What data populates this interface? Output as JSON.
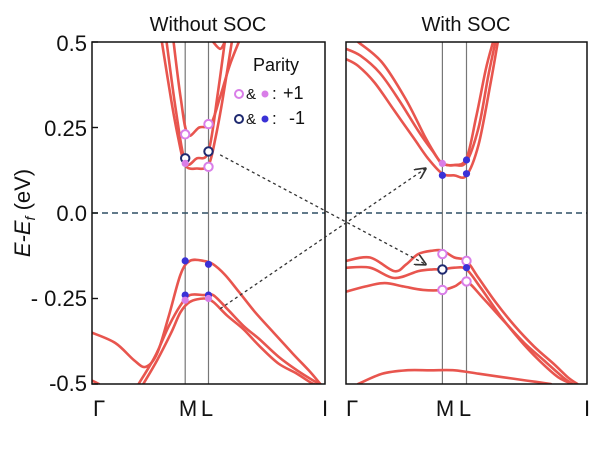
{
  "chart_data": {
    "type": "line",
    "ylabel": "E-E_f (eV)",
    "ylabel_main": "E-E",
    "ylabel_sub": "f",
    "ylabel_unit": " (eV)",
    "ylim": [
      -0.5,
      0.5
    ],
    "yticks": [
      0.5,
      0.25,
      0.0,
      -0.25,
      -0.5
    ],
    "ytick_labels": [
      "0.5",
      "0.25",
      "0.0",
      "- 0.25",
      "-0.5"
    ],
    "x_range": [
      0,
      1
    ],
    "xticks": [
      {
        "label": "Γ",
        "pos": 0
      },
      {
        "label": "M",
        "pos": 0.4
      },
      {
        "label": "L",
        "pos": 0.5
      },
      {
        "label": "I",
        "pos": 1
      }
    ],
    "colors": {
      "band": "#e8554e",
      "fermi": "#2e4e63",
      "parity_plus": "#d97ee8",
      "parity_minus": "#3a31d6",
      "marker_edge_minus": "#1f2a70",
      "grid": "#777777"
    },
    "legend": {
      "title": "Parity",
      "entries": [
        {
          "symbols": "o&•:",
          "label": "+1"
        },
        {
          "symbols": "o&•:",
          "label": "-1"
        }
      ],
      "placement": "top-right of left panel"
    },
    "panels": [
      {
        "title": "Without SOC",
        "bands": [
          {
            "x": [
              0.3,
              0.34,
              0.37,
              0.4,
              0.45,
              0.5,
              0.53,
              0.56,
              0.6
            ],
            "y": [
              0.5,
              0.33,
              0.22,
              0.14,
              0.13,
              0.14,
              0.22,
              0.33,
              0.5
            ]
          },
          {
            "x": [
              0.32,
              0.36,
              0.4,
              0.45,
              0.5,
              0.54,
              0.57
            ],
            "y": [
              0.5,
              0.3,
              0.15,
              0.16,
              0.18,
              0.35,
              0.5
            ]
          },
          {
            "x": [
              0.35,
              0.38,
              0.41,
              0.46,
              0.51,
              0.55,
              0.59,
              0.63
            ],
            "y": [
              0.5,
              0.34,
              0.23,
              0.25,
              0.26,
              0.34,
              0.43,
              0.5
            ]
          },
          {
            "x": [
              0.52,
              0.55,
              0.57
            ],
            "y": [
              0.5,
              0.48,
              0.5
            ]
          },
          {
            "x": [
              0.0,
              0.1,
              0.18,
              0.23,
              0.28,
              0.33,
              0.38,
              0.42,
              0.48,
              0.52,
              0.57,
              0.63,
              0.7,
              0.78,
              0.86,
              0.93,
              0.98
            ],
            "y": [
              -0.35,
              -0.38,
              -0.43,
              -0.45,
              -0.41,
              -0.3,
              -0.18,
              -0.14,
              -0.14,
              -0.15,
              -0.18,
              -0.23,
              -0.29,
              -0.35,
              -0.41,
              -0.46,
              -0.5
            ]
          },
          {
            "x": [
              0.2,
              0.27,
              0.33,
              0.38,
              0.42,
              0.48,
              0.52,
              0.58,
              0.65,
              0.72,
              0.8,
              0.88,
              0.95,
              0.98
            ],
            "y": [
              -0.5,
              -0.42,
              -0.33,
              -0.27,
              -0.24,
              -0.24,
              -0.24,
              -0.28,
              -0.33,
              -0.37,
              -0.42,
              -0.46,
              -0.49,
              -0.5
            ]
          },
          {
            "x": [
              0.22,
              0.28,
              0.34,
              0.38,
              0.42,
              0.48,
              0.52,
              0.58,
              0.65,
              0.72,
              0.8,
              0.88,
              0.95,
              0.98
            ],
            "y": [
              -0.5,
              -0.43,
              -0.35,
              -0.29,
              -0.26,
              -0.25,
              -0.26,
              -0.3,
              -0.34,
              -0.39,
              -0.44,
              -0.47,
              -0.5,
              -0.5
            ]
          },
          {
            "x": [
              0.0,
              0.03
            ],
            "y": [
              -0.49,
              -0.5
            ]
          }
        ],
        "markers": [
          {
            "x": 0.4,
            "y": 0.23,
            "parity": 1,
            "filled": false
          },
          {
            "x": 0.5,
            "y": 0.26,
            "parity": 1,
            "filled": false
          },
          {
            "x": 0.4,
            "y": 0.16,
            "parity": -1,
            "filled": false
          },
          {
            "x": 0.5,
            "y": 0.18,
            "parity": -1,
            "filled": false
          },
          {
            "x": 0.4,
            "y": 0.145,
            "parity": 1,
            "filled": true
          },
          {
            "x": 0.5,
            "y": 0.135,
            "parity": 1,
            "filled": false
          },
          {
            "x": 0.4,
            "y": -0.14,
            "parity": -1,
            "filled": true
          },
          {
            "x": 0.5,
            "y": -0.15,
            "parity": -1,
            "filled": true
          },
          {
            "x": 0.4,
            "y": -0.24,
            "parity": -1,
            "filled": true
          },
          {
            "x": 0.5,
            "y": -0.24,
            "parity": -1,
            "filled": true
          },
          {
            "x": 0.4,
            "y": -0.255,
            "parity": 1,
            "filled": true
          },
          {
            "x": 0.5,
            "y": -0.25,
            "parity": 1,
            "filled": true
          }
        ]
      },
      {
        "title": "With SOC",
        "bands": [
          {
            "x": [
              0.0,
              0.05,
              0.12,
              0.2,
              0.28,
              0.34,
              0.4,
              0.45,
              0.5,
              0.55,
              0.6,
              0.63
            ],
            "y": [
              0.45,
              0.43,
              0.38,
              0.3,
              0.22,
              0.16,
              0.115,
              0.11,
              0.11,
              0.2,
              0.38,
              0.5
            ]
          },
          {
            "x": [
              0.0,
              0.06,
              0.14,
              0.22,
              0.3,
              0.36,
              0.4,
              0.45,
              0.5,
              0.55,
              0.59,
              0.62
            ],
            "y": [
              0.48,
              0.46,
              0.41,
              0.33,
              0.24,
              0.18,
              0.145,
              0.14,
              0.15,
              0.25,
              0.4,
              0.5
            ]
          },
          {
            "x": [
              0.05,
              0.15,
              0.25,
              0.33,
              0.38,
              0.4,
              0.45,
              0.5,
              0.54,
              0.58,
              0.61
            ],
            "y": [
              0.5,
              0.44,
              0.33,
              0.22,
              0.16,
              0.145,
              0.14,
              0.16,
              0.28,
              0.42,
              0.5
            ]
          },
          {
            "x": [
              0.0,
              0.1,
              0.2,
              0.25,
              0.3,
              0.36,
              0.4,
              0.45,
              0.5,
              0.55,
              0.62,
              0.7,
              0.78,
              0.86,
              0.92,
              0.96
            ],
            "y": [
              -0.14,
              -0.13,
              -0.17,
              -0.15,
              -0.12,
              -0.11,
              -0.11,
              -0.13,
              -0.14,
              -0.19,
              -0.26,
              -0.33,
              -0.39,
              -0.44,
              -0.48,
              -0.5
            ]
          },
          {
            "x": [
              0.0,
              0.1,
              0.2,
              0.3,
              0.36,
              0.4,
              0.45,
              0.5,
              0.56,
              0.64,
              0.72,
              0.8,
              0.88,
              0.94
            ],
            "y": [
              -0.16,
              -0.16,
              -0.19,
              -0.17,
              -0.165,
              -0.165,
              -0.16,
              -0.165,
              -0.22,
              -0.3,
              -0.37,
              -0.43,
              -0.48,
              -0.5
            ]
          },
          {
            "x": [
              0.0,
              0.08,
              0.16,
              0.24,
              0.32,
              0.4,
              0.45,
              0.5,
              0.57,
              0.66,
              0.74,
              0.82,
              0.9,
              0.94
            ],
            "y": [
              -0.23,
              -0.215,
              -0.205,
              -0.215,
              -0.225,
              -0.225,
              -0.215,
              -0.2,
              -0.25,
              -0.32,
              -0.38,
              -0.43,
              -0.48,
              -0.5
            ]
          },
          {
            "x": [
              0.05,
              0.15,
              0.25,
              0.35,
              0.45,
              0.55,
              0.65,
              0.75,
              0.85
            ],
            "y": [
              -0.5,
              -0.47,
              -0.46,
              -0.46,
              -0.46,
              -0.47,
              -0.48,
              -0.49,
              -0.5
            ]
          }
        ],
        "markers": [
          {
            "x": 0.4,
            "y": 0.145,
            "parity": 1,
            "filled": true
          },
          {
            "x": 0.5,
            "y": 0.155,
            "parity": -1,
            "filled": true
          },
          {
            "x": 0.4,
            "y": 0.11,
            "parity": -1,
            "filled": true
          },
          {
            "x": 0.5,
            "y": 0.115,
            "parity": -1,
            "filled": true
          },
          {
            "x": 0.4,
            "y": -0.12,
            "parity": 1,
            "filled": false
          },
          {
            "x": 0.5,
            "y": -0.14,
            "parity": 1,
            "filled": false
          },
          {
            "x": 0.4,
            "y": -0.165,
            "parity": -1,
            "filled": false
          },
          {
            "x": 0.5,
            "y": -0.16,
            "parity": -1,
            "filled": true
          },
          {
            "x": 0.4,
            "y": -0.225,
            "parity": 1,
            "filled": false
          },
          {
            "x": 0.5,
            "y": -0.2,
            "parity": 1,
            "filled": false
          }
        ]
      }
    ],
    "annotations": [
      {
        "type": "dashed-arrow",
        "from": {
          "panel": 0,
          "x": 0.55,
          "y": 0.17
        },
        "to": {
          "panel": 1,
          "x": 0.33,
          "y": -0.15
        }
      },
      {
        "type": "dashed-arrow",
        "from": {
          "panel": 0,
          "x": 0.55,
          "y": -0.28
        },
        "to": {
          "panel": 1,
          "x": 0.33,
          "y": 0.13
        }
      }
    ]
  }
}
